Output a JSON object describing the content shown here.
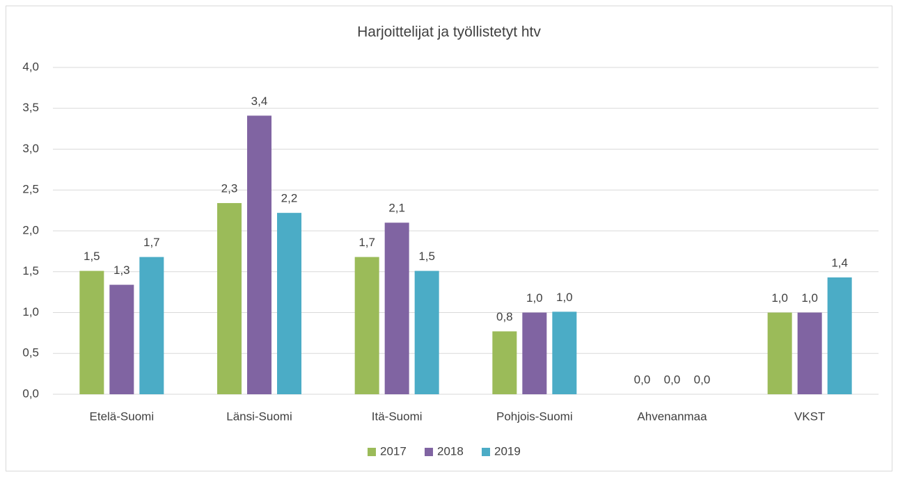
{
  "chart_data": {
    "type": "bar",
    "title": "Harjoittelijat ja työllistetyt htv",
    "categories": [
      "Etelä-Suomi",
      "Länsi-Suomi",
      "Itä-Suomi",
      "Pohjois-Suomi",
      "Ahvenanmaa",
      "VKST"
    ],
    "series": [
      {
        "name": "2017",
        "color": "#9bbb59",
        "values": [
          1.51,
          2.34,
          1.68,
          0.77,
          0,
          1.0
        ],
        "value_labels": [
          "1,5",
          "2,3",
          "1,7",
          "0,8",
          "0,0",
          "1,0"
        ]
      },
      {
        "name": "2018",
        "color": "#8064a2",
        "values": [
          1.34,
          3.41,
          2.1,
          1.0,
          0,
          1.0
        ],
        "value_labels": [
          "1,3",
          "3,4",
          "2,1",
          "1,0",
          "0,0",
          "1,0"
        ]
      },
      {
        "name": "2019",
        "color": "#4bacc6",
        "values": [
          1.68,
          2.22,
          1.51,
          1.01,
          0,
          1.43
        ],
        "value_labels": [
          "1,7",
          "2,2",
          "1,5",
          "1,0",
          "0,0",
          "1,4"
        ]
      }
    ],
    "ylim": [
      0,
      4
    ],
    "yticks": [
      {
        "value": 0,
        "label": "0,0"
      },
      {
        "value": 0.5,
        "label": "0,5"
      },
      {
        "value": 1,
        "label": "1,0"
      },
      {
        "value": 1.5,
        "label": "1,5"
      },
      {
        "value": 2,
        "label": "2,0"
      },
      {
        "value": 2.5,
        "label": "2,5"
      },
      {
        "value": 3,
        "label": "3,0"
      },
      {
        "value": 3.5,
        "label": "3,5"
      },
      {
        "value": 4,
        "label": "4,0"
      }
    ],
    "grid": true,
    "legend": "bottom"
  }
}
